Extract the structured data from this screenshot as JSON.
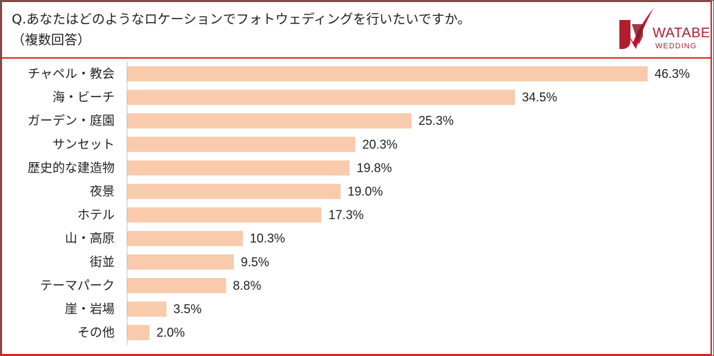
{
  "question": {
    "line1": "Q.あなたはどのようなロケーションでフォトウェディングを行いたいですか。",
    "line2": "（複数回答）"
  },
  "logo": {
    "line1": "WATABE",
    "line2": "WEDDING",
    "color": "#b01e2f"
  },
  "colors": {
    "bar": "#f8cbad",
    "border": "#e2231a"
  },
  "chart_data": {
    "type": "bar",
    "orientation": "horizontal",
    "categories": [
      "チャペル・教会",
      "海・ビーチ",
      "ガーデン・庭園",
      "サンセット",
      "歴史的な建造物",
      "夜景",
      "ホテル",
      "山・高原",
      "街並",
      "テーマパーク",
      "崖・岩場",
      "その他"
    ],
    "values": [
      46.3,
      34.5,
      25.3,
      20.3,
      19.8,
      19.0,
      17.3,
      10.3,
      9.5,
      8.8,
      3.5,
      2.0
    ],
    "value_labels": [
      "46.3%",
      "34.5%",
      "25.3%",
      "20.3%",
      "19.8%",
      "19.0%",
      "17.3%",
      "10.3%",
      "9.5%",
      "8.8%",
      "3.5%",
      "2.0%"
    ],
    "unit": "%",
    "xlim": [
      0,
      46.3
    ],
    "grid": false,
    "legend": "none"
  }
}
